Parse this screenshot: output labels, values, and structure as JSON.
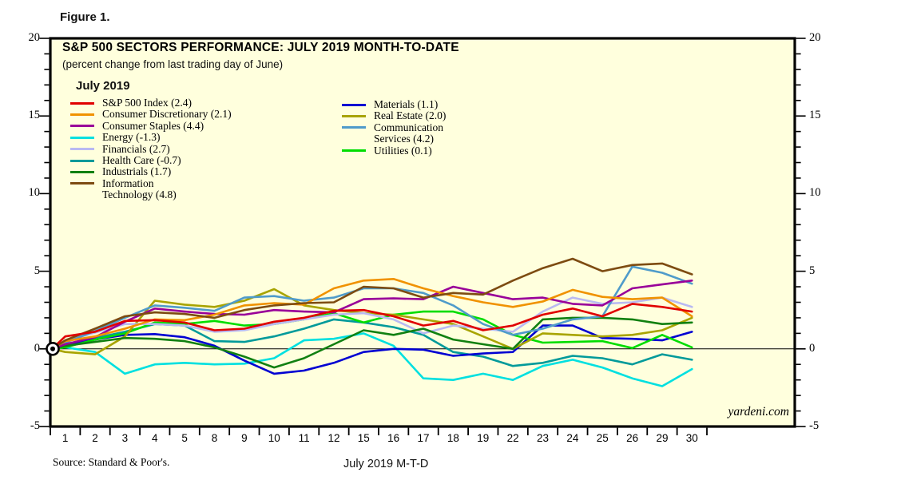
{
  "figure_label": "Figure 1.",
  "chart": {
    "title": "S&P 500 SECTORS PERFORMANCE: JULY 2019 MONTH-TO-DATE",
    "subtitle": "(percent change from last trading day of June)",
    "legend_heading": "July 2019",
    "watermark": "yardeni.com",
    "source_note": "Source: Standard & Poor's.",
    "x_axis_title": "July 2019 M-T-D",
    "plot_bg_color": "#ffffdd",
    "axis_color": "#000000"
  },
  "chart_data": {
    "type": "line",
    "title": "S&P 500 SECTORS PERFORMANCE: JULY 2019 MONTH-TO-DATE",
    "subtitle": "(percent change from last trading day of June)",
    "xlabel": "July 2019 M-T-D",
    "ylabel": "percent change",
    "ylim": [
      -5,
      20
    ],
    "y_major_ticks": [
      "20",
      "15",
      "10",
      "5",
      "0",
      "-5"
    ],
    "y_minor_step": 1,
    "grid": "off",
    "zero_line": true,
    "origin_marker": "bullseye at 0",
    "origin_value": 0,
    "legend_position": "top-left inside, two columns",
    "categories": [
      "1",
      "2",
      "3",
      "4",
      "5",
      "8",
      "9",
      "10",
      "11",
      "12",
      "15",
      "16",
      "17",
      "18",
      "19",
      "22",
      "23",
      "24",
      "25",
      "26",
      "29",
      "30"
    ],
    "series": [
      {
        "name": "S&P 500 Index",
        "month_to_date_pct": 2.4,
        "legend_lines": [
          "S&P 500 Index (2.4)"
        ],
        "legend_column": "left",
        "color": "#e00000",
        "values": [
          0.8,
          1.1,
          1.8,
          1.85,
          1.7,
          1.2,
          1.3,
          1.75,
          2.0,
          2.45,
          2.5,
          2.1,
          1.5,
          1.8,
          1.2,
          1.5,
          2.2,
          2.6,
          2.1,
          2.9,
          2.7,
          2.4
        ]
      },
      {
        "name": "Consumer Discretionary",
        "month_to_date_pct": 2.1,
        "legend_lines": [
          "Consumer Discretionary (2.1)"
        ],
        "legend_column": "left",
        "color": "#f09200",
        "values": [
          0.5,
          0.8,
          1.3,
          1.9,
          1.85,
          2.2,
          2.8,
          2.95,
          2.85,
          3.9,
          4.4,
          4.5,
          3.9,
          3.4,
          3.0,
          2.7,
          3.05,
          3.8,
          3.35,
          3.2,
          3.3,
          2.1
        ]
      },
      {
        "name": "Consumer Staples",
        "month_to_date_pct": 4.4,
        "legend_lines": [
          "Consumer Staples (4.4)"
        ],
        "legend_column": "left",
        "color": "#990099",
        "values": [
          0.3,
          0.75,
          1.75,
          2.6,
          2.4,
          2.25,
          2.2,
          2.5,
          2.4,
          2.35,
          3.2,
          3.25,
          3.2,
          4.0,
          3.6,
          3.2,
          3.3,
          2.9,
          2.8,
          3.9,
          4.15,
          4.4
        ]
      },
      {
        "name": "Energy",
        "month_to_date_pct": -1.3,
        "legend_lines": [
          "Energy (-1.3)"
        ],
        "legend_column": "left",
        "color": "#00e0e0",
        "values": [
          0.1,
          -0.2,
          -1.6,
          -1.0,
          -0.9,
          -1.0,
          -0.95,
          -0.6,
          0.55,
          0.65,
          1.0,
          0.2,
          -1.9,
          -2.0,
          -1.6,
          -2.0,
          -1.1,
          -0.7,
          -1.2,
          -1.9,
          -2.4,
          -1.3
        ]
      },
      {
        "name": "Financials",
        "month_to_date_pct": 2.7,
        "legend_lines": [
          "Financials (2.7)"
        ],
        "legend_column": "left",
        "color": "#b9b9f2",
        "values": [
          0.5,
          1.05,
          1.6,
          1.6,
          1.5,
          1.1,
          1.2,
          1.6,
          1.9,
          2.2,
          2.3,
          1.9,
          1.0,
          1.5,
          1.3,
          1.1,
          2.4,
          3.3,
          2.9,
          3.0,
          3.3,
          2.7
        ]
      },
      {
        "name": "Health Care",
        "month_to_date_pct": -0.7,
        "legend_lines": [
          "Health Care (-0.7)"
        ],
        "legend_column": "left",
        "color": "#009a9a",
        "values": [
          0.2,
          0.7,
          1.1,
          1.6,
          1.5,
          0.5,
          0.45,
          0.8,
          1.3,
          1.9,
          1.7,
          1.4,
          0.9,
          -0.2,
          -0.5,
          -1.1,
          -0.9,
          -0.45,
          -0.6,
          -1.0,
          -0.35,
          -0.7
        ]
      },
      {
        "name": "Industrials",
        "month_to_date_pct": 1.7,
        "legend_lines": [
          "Industrials (1.7)"
        ],
        "legend_column": "left",
        "color": "#118011",
        "values": [
          0.2,
          0.45,
          0.7,
          0.65,
          0.5,
          0.1,
          -0.5,
          -1.2,
          -0.6,
          0.3,
          1.2,
          0.9,
          1.3,
          0.6,
          0.3,
          0.0,
          1.9,
          2.0,
          2.0,
          1.9,
          1.6,
          1.7
        ]
      },
      {
        "name": "Information Technology",
        "month_to_date_pct": 4.8,
        "legend_lines": [
          "Information",
          "Technology (4.8)"
        ],
        "legend_column": "left",
        "color": "#7d4b11",
        "values": [
          0.55,
          1.3,
          2.1,
          2.35,
          2.25,
          2.0,
          2.5,
          2.8,
          2.95,
          3.0,
          4.0,
          3.9,
          3.3,
          3.6,
          3.5,
          4.4,
          5.2,
          5.8,
          5.0,
          5.4,
          5.5,
          4.8
        ]
      },
      {
        "name": "Materials",
        "month_to_date_pct": 1.1,
        "legend_lines": [
          "Materials (1.1)"
        ],
        "legend_column": "right",
        "color": "#0000d2",
        "values": [
          0.3,
          0.6,
          0.9,
          0.95,
          0.75,
          0.2,
          -0.75,
          -1.6,
          -1.4,
          -0.9,
          -0.2,
          0.0,
          -0.05,
          -0.45,
          -0.3,
          -0.2,
          1.5,
          1.5,
          0.7,
          0.65,
          0.55,
          1.1
        ]
      },
      {
        "name": "Real Estate",
        "month_to_date_pct": 2.0,
        "legend_lines": [
          "Real Estate (2.0)"
        ],
        "legend_column": "right",
        "color": "#a8a400",
        "values": [
          -0.2,
          -0.35,
          0.8,
          3.1,
          2.85,
          2.7,
          3.1,
          3.85,
          2.8,
          2.5,
          2.3,
          2.2,
          1.9,
          1.6,
          0.8,
          0.0,
          1.0,
          0.9,
          0.8,
          0.9,
          1.2,
          2.0
        ]
      },
      {
        "name": "Communication Services",
        "month_to_date_pct": 4.2,
        "legend_lines": [
          "Communication",
          "Services (4.2)"
        ],
        "legend_column": "right",
        "color": "#4f9bca",
        "values": [
          0.4,
          1.15,
          2.0,
          2.8,
          2.65,
          2.45,
          3.3,
          3.4,
          3.1,
          3.3,
          3.9,
          3.9,
          3.6,
          2.8,
          1.6,
          0.9,
          1.3,
          1.9,
          2.1,
          5.3,
          4.9,
          4.2
        ]
      },
      {
        "name": "Utilities",
        "month_to_date_pct": 0.1,
        "legend_lines": [
          "Utilities (0.1)"
        ],
        "legend_column": "right",
        "color": "#00dd00",
        "values": [
          0.1,
          0.6,
          1.0,
          1.7,
          1.6,
          1.8,
          1.5,
          1.6,
          1.9,
          2.3,
          1.7,
          2.2,
          2.4,
          2.4,
          1.9,
          0.9,
          0.4,
          0.45,
          0.5,
          0.05,
          0.9,
          0.1
        ]
      }
    ]
  }
}
